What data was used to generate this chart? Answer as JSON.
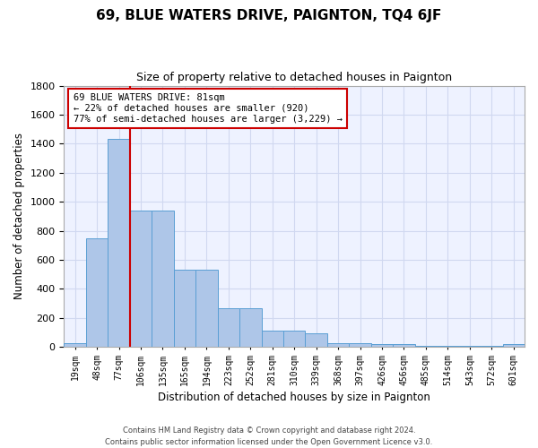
{
  "title": "69, BLUE WATERS DRIVE, PAIGNTON, TQ4 6JF",
  "subtitle": "Size of property relative to detached houses in Paignton",
  "xlabel": "Distribution of detached houses by size in Paignton",
  "ylabel": "Number of detached properties",
  "categories": [
    "19sqm",
    "48sqm",
    "77sqm",
    "106sqm",
    "135sqm",
    "165sqm",
    "194sqm",
    "223sqm",
    "252sqm",
    "281sqm",
    "310sqm",
    "339sqm",
    "368sqm",
    "397sqm",
    "426sqm",
    "456sqm",
    "485sqm",
    "514sqm",
    "543sqm",
    "572sqm",
    "601sqm"
  ],
  "values": [
    25,
    745,
    1430,
    940,
    940,
    530,
    530,
    265,
    265,
    110,
    110,
    95,
    25,
    25,
    17,
    17,
    8,
    8,
    8,
    8,
    17
  ],
  "bar_color": "#aec6e8",
  "bar_edge_color": "#5a9fd4",
  "grid_color": "#d0d8f0",
  "background_color": "#eef2ff",
  "vline_color": "#cc0000",
  "vline_index": 2.5,
  "annotation_text": "69 BLUE WATERS DRIVE: 81sqm\n← 22% of detached houses are smaller (920)\n77% of semi-detached houses are larger (3,229) →",
  "annotation_box_color": "#ffffff",
  "annotation_box_edge": "#cc0000",
  "footer": "Contains HM Land Registry data © Crown copyright and database right 2024.\nContains public sector information licensed under the Open Government Licence v3.0.",
  "ylim": [
    0,
    1800
  ],
  "yticks": [
    0,
    200,
    400,
    600,
    800,
    1000,
    1200,
    1400,
    1600,
    1800
  ]
}
